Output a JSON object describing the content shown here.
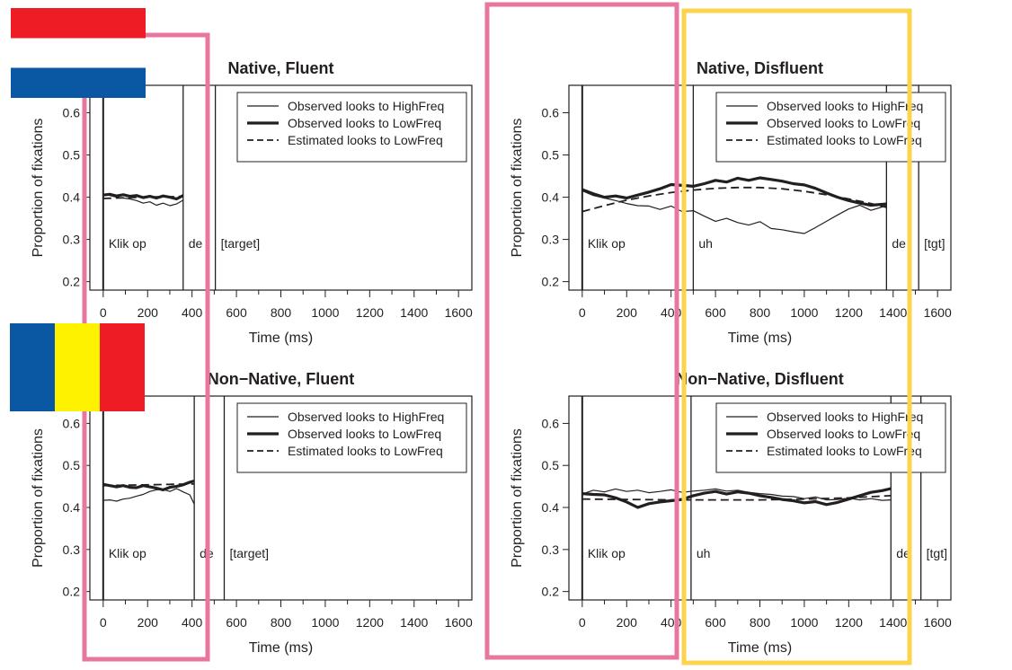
{
  "figure": {
    "flags": [
      {
        "name": "netherlands-flag",
        "stripes": [
          "#ee1c25",
          "#ffffff",
          "#0a57a4"
        ],
        "orientation": "horizontal"
      },
      {
        "name": "romania-flag",
        "stripes": [
          "#0a57a4",
          "#fff200",
          "#ee1c25"
        ],
        "orientation": "vertical"
      }
    ],
    "highlight_colors": {
      "pink": "#e8779f",
      "yellow": "#fcd34d"
    }
  },
  "chart_data": [
    {
      "type": "line",
      "title": "Native, Fluent",
      "xlabel": "Time (ms)",
      "ylabel": "Proportion of fixations",
      "xlim": [
        -60,
        1660
      ],
      "ylim": [
        0.18,
        0.665
      ],
      "xticks": [
        0,
        200,
        400,
        600,
        800,
        1000,
        1200,
        1400,
        1600
      ],
      "yticks": [
        0.2,
        0.3,
        0.4,
        0.5,
        0.6
      ],
      "ytick_labels": [
        "0.2",
        "0.3",
        "0.4",
        "0.5",
        "0.6"
      ],
      "legend": {
        "position": "top-right",
        "entries": [
          "Observed looks to HighFreq",
          "Observed looks to LowFreq",
          "Estimated looks to LowFreq"
        ]
      },
      "markers": [
        {
          "x": 0,
          "label": "Klik op"
        },
        {
          "x": 360,
          "label": "de"
        },
        {
          "x": 505,
          "label": "[target]"
        }
      ],
      "series": [
        {
          "name": "Observed looks to HighFreq",
          "style": "thin",
          "x": [
            0,
            30,
            60,
            90,
            120,
            150,
            180,
            210,
            240,
            270,
            300,
            330,
            360
          ],
          "y": [
            0.407,
            0.404,
            0.4,
            0.398,
            0.396,
            0.392,
            0.386,
            0.389,
            0.381,
            0.386,
            0.38,
            0.384,
            0.393
          ]
        },
        {
          "name": "Observed looks to LowFreq",
          "style": "thick",
          "x": [
            0,
            30,
            60,
            90,
            120,
            150,
            180,
            210,
            240,
            270,
            300,
            330,
            360
          ],
          "y": [
            0.405,
            0.407,
            0.403,
            0.406,
            0.402,
            0.404,
            0.399,
            0.402,
            0.398,
            0.403,
            0.4,
            0.396,
            0.404
          ]
        },
        {
          "name": "Estimated looks to LowFreq",
          "style": "dashed",
          "x": [
            0,
            60,
            120,
            180,
            240,
            300,
            360
          ],
          "y": [
            0.397,
            0.398,
            0.399,
            0.4,
            0.401,
            0.401,
            0.402
          ]
        }
      ]
    },
    {
      "type": "line",
      "title": "Native, Disfluent",
      "xlabel": "Time (ms)",
      "ylabel": "Proportion of fixations",
      "xlim": [
        -60,
        1660
      ],
      "ylim": [
        0.18,
        0.665
      ],
      "xticks": [
        0,
        200,
        400,
        600,
        800,
        1000,
        1200,
        1400,
        1600
      ],
      "yticks": [
        0.2,
        0.3,
        0.4,
        0.5,
        0.6
      ],
      "ytick_labels": [
        "0.2",
        "0.3",
        "0.4",
        "0.5",
        "0.6"
      ],
      "legend": {
        "position": "top-right",
        "entries": [
          "Observed looks to HighFreq",
          "Observed looks to LowFreq",
          "Estimated looks to LowFreq"
        ]
      },
      "markers": [
        {
          "x": 0,
          "label": "Klik op"
        },
        {
          "x": 500,
          "label": "uh"
        },
        {
          "x": 1370,
          "label": "de"
        },
        {
          "x": 1515,
          "label": "[tgt]"
        }
      ],
      "series": [
        {
          "name": "Observed looks to HighFreq",
          "style": "thin",
          "x": [
            0,
            50,
            100,
            150,
            200,
            250,
            300,
            350,
            400,
            450,
            500,
            550,
            600,
            650,
            700,
            750,
            800,
            850,
            900,
            950,
            1000,
            1050,
            1100,
            1150,
            1200,
            1250,
            1300,
            1370
          ],
          "y": [
            0.415,
            0.404,
            0.398,
            0.392,
            0.385,
            0.38,
            0.379,
            0.371,
            0.379,
            0.366,
            0.368,
            0.355,
            0.343,
            0.35,
            0.34,
            0.334,
            0.342,
            0.326,
            0.323,
            0.318,
            0.314,
            0.328,
            0.343,
            0.358,
            0.372,
            0.381,
            0.369,
            0.38
          ]
        },
        {
          "name": "Observed looks to LowFreq",
          "style": "thick",
          "x": [
            0,
            50,
            100,
            150,
            200,
            250,
            300,
            350,
            400,
            450,
            500,
            550,
            600,
            650,
            700,
            750,
            800,
            850,
            900,
            950,
            1000,
            1050,
            1100,
            1150,
            1200,
            1250,
            1300,
            1370
          ],
          "y": [
            0.418,
            0.408,
            0.4,
            0.403,
            0.398,
            0.405,
            0.412,
            0.42,
            0.43,
            0.428,
            0.426,
            0.432,
            0.44,
            0.436,
            0.445,
            0.44,
            0.446,
            0.442,
            0.438,
            0.432,
            0.429,
            0.421,
            0.41,
            0.4,
            0.392,
            0.386,
            0.381,
            0.384
          ]
        },
        {
          "name": "Estimated looks to LowFreq",
          "style": "dashed",
          "x": [
            0,
            100,
            200,
            300,
            400,
            500,
            600,
            700,
            800,
            900,
            1000,
            1100,
            1200,
            1300,
            1370
          ],
          "y": [
            0.366,
            0.38,
            0.393,
            0.403,
            0.411,
            0.417,
            0.421,
            0.423,
            0.423,
            0.42,
            0.414,
            0.406,
            0.396,
            0.385,
            0.376
          ]
        }
      ]
    },
    {
      "type": "line",
      "title": "Non−Native, Fluent",
      "xlabel": "Time (ms)",
      "ylabel": "Proportion of fixations",
      "xlim": [
        -60,
        1660
      ],
      "ylim": [
        0.18,
        0.665
      ],
      "xticks": [
        0,
        200,
        400,
        600,
        800,
        1000,
        1200,
        1400,
        1600
      ],
      "yticks": [
        0.2,
        0.3,
        0.4,
        0.5,
        0.6
      ],
      "ytick_labels": [
        "0.2",
        "0.3",
        "0.4",
        "0.5",
        "0.6"
      ],
      "legend": {
        "position": "top-right",
        "entries": [
          "Observed looks to HighFreq",
          "Observed looks to LowFreq",
          "Estimated looks to LowFreq"
        ]
      },
      "markers": [
        {
          "x": 0,
          "label": "Klik op"
        },
        {
          "x": 410,
          "label": "de"
        },
        {
          "x": 545,
          "label": "[target]"
        }
      ],
      "series": [
        {
          "name": "Observed looks to HighFreq",
          "style": "thin",
          "x": [
            0,
            30,
            60,
            90,
            120,
            150,
            180,
            210,
            240,
            270,
            300,
            330,
            360,
            390,
            410
          ],
          "y": [
            0.417,
            0.418,
            0.415,
            0.42,
            0.422,
            0.427,
            0.431,
            0.438,
            0.442,
            0.443,
            0.438,
            0.445,
            0.437,
            0.43,
            0.408
          ]
        },
        {
          "name": "Observed looks to LowFreq",
          "style": "thick",
          "x": [
            0,
            30,
            60,
            90,
            120,
            150,
            180,
            210,
            240,
            270,
            300,
            330,
            360,
            390,
            410
          ],
          "y": [
            0.455,
            0.452,
            0.449,
            0.452,
            0.448,
            0.447,
            0.452,
            0.449,
            0.446,
            0.442,
            0.448,
            0.45,
            0.454,
            0.46,
            0.463
          ]
        },
        {
          "name": "Estimated looks to LowFreq",
          "style": "dashed",
          "x": [
            0,
            100,
            200,
            300,
            410
          ],
          "y": [
            0.452,
            0.453,
            0.454,
            0.455,
            0.456
          ]
        }
      ]
    },
    {
      "type": "line",
      "title": "Non−Native, Disfluent",
      "xlabel": "Time (ms)",
      "ylabel": "Proportion of fixations",
      "xlim": [
        -60,
        1660
      ],
      "ylim": [
        0.18,
        0.665
      ],
      "xticks": [
        0,
        200,
        400,
        600,
        800,
        1000,
        1200,
        1400,
        1600
      ],
      "yticks": [
        0.2,
        0.3,
        0.4,
        0.5,
        0.6
      ],
      "ytick_labels": [
        "0.2",
        "0.3",
        "0.4",
        "0.5",
        "0.6"
      ],
      "legend": {
        "position": "top-right",
        "entries": [
          "Observed looks to HighFreq",
          "Observed looks to LowFreq",
          "Estimated looks to LowFreq"
        ]
      },
      "markers": [
        {
          "x": 0,
          "label": "Klik op"
        },
        {
          "x": 490,
          "label": "uh"
        },
        {
          "x": 1390,
          "label": "de"
        },
        {
          "x": 1525,
          "label": "[tgt]"
        }
      ],
      "series": [
        {
          "name": "Observed looks to HighFreq",
          "style": "thin",
          "x": [
            0,
            50,
            100,
            150,
            200,
            250,
            300,
            350,
            400,
            450,
            500,
            550,
            600,
            650,
            700,
            750,
            800,
            850,
            900,
            950,
            1000,
            1050,
            1100,
            1150,
            1200,
            1250,
            1300,
            1350,
            1390
          ],
          "y": [
            0.432,
            0.441,
            0.437,
            0.444,
            0.438,
            0.441,
            0.435,
            0.438,
            0.442,
            0.436,
            0.439,
            0.441,
            0.444,
            0.439,
            0.441,
            0.436,
            0.433,
            0.431,
            0.427,
            0.426,
            0.421,
            0.425,
            0.418,
            0.419,
            0.422,
            0.418,
            0.421,
            0.417,
            0.418
          ]
        },
        {
          "name": "Observed looks to LowFreq",
          "style": "thick",
          "x": [
            0,
            50,
            100,
            150,
            200,
            250,
            300,
            350,
            400,
            450,
            500,
            550,
            600,
            650,
            700,
            750,
            800,
            850,
            900,
            950,
            1000,
            1050,
            1100,
            1150,
            1200,
            1250,
            1300,
            1350,
            1390
          ],
          "y": [
            0.433,
            0.431,
            0.43,
            0.423,
            0.413,
            0.4,
            0.409,
            0.413,
            0.416,
            0.419,
            0.428,
            0.434,
            0.438,
            0.432,
            0.437,
            0.434,
            0.428,
            0.424,
            0.419,
            0.416,
            0.411,
            0.414,
            0.407,
            0.412,
            0.42,
            0.428,
            0.436,
            0.44,
            0.445
          ]
        },
        {
          "name": "Estimated looks to LowFreq",
          "style": "dashed",
          "x": [
            0,
            200,
            400,
            600,
            800,
            1000,
            1200,
            1390
          ],
          "y": [
            0.42,
            0.419,
            0.418,
            0.418,
            0.418,
            0.42,
            0.423,
            0.428
          ]
        }
      ]
    }
  ]
}
